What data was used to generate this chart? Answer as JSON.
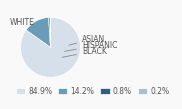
{
  "labels": [
    "WHITE",
    "ASIAN",
    "HISPANIC",
    "BLACK"
  ],
  "values": [
    84.9,
    14.2,
    0.8,
    0.2
  ],
  "colors": [
    "#d6e0ea",
    "#6a9cb8",
    "#2e5f7e",
    "#b0bec5"
  ],
  "legend_labels": [
    "84.9%",
    "14.2%",
    "0.8%",
    "0.2%"
  ],
  "legend_colors": [
    "#d6e0ea",
    "#6a9cb8",
    "#2e5f7e",
    "#b0bec5"
  ],
  "text_color": "#555555",
  "font_size": 5.5
}
